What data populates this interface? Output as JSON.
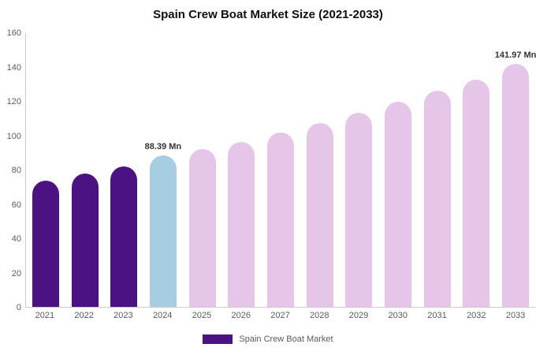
{
  "chart_data": {
    "type": "bar",
    "title": "Spain Crew Boat Market Size (2021-2033)",
    "xlabel": "",
    "ylabel": "",
    "ylim": [
      0,
      160
    ],
    "yticks": [
      0,
      20,
      40,
      60,
      80,
      100,
      120,
      140,
      160
    ],
    "grid": false,
    "legend_position": "bottom-center",
    "legend_label": "Spain Crew Boat Market",
    "colors": {
      "historical": "#4b1284",
      "highlight": "#a7cde2",
      "forecast": "#e6c6e8"
    },
    "categories": [
      "2021",
      "2022",
      "2023",
      "2024",
      "2025",
      "2026",
      "2027",
      "2028",
      "2029",
      "2030",
      "2031",
      "2032",
      "2033"
    ],
    "points": [
      {
        "year": "2021",
        "value": 74,
        "segment": "historical",
        "label": ""
      },
      {
        "year": "2022",
        "value": 78,
        "segment": "historical",
        "label": ""
      },
      {
        "year": "2023",
        "value": 82,
        "segment": "historical",
        "label": ""
      },
      {
        "year": "2024",
        "value": 88.39,
        "segment": "highlight",
        "label": "88.39 Mn"
      },
      {
        "year": "2025",
        "value": 92,
        "segment": "forecast",
        "label": ""
      },
      {
        "year": "2026",
        "value": 96.5,
        "segment": "forecast",
        "label": ""
      },
      {
        "year": "2027",
        "value": 102,
        "segment": "forecast",
        "label": ""
      },
      {
        "year": "2028",
        "value": 107.5,
        "segment": "forecast",
        "label": ""
      },
      {
        "year": "2029",
        "value": 113.5,
        "segment": "forecast",
        "label": ""
      },
      {
        "year": "2030",
        "value": 120,
        "segment": "forecast",
        "label": ""
      },
      {
        "year": "2031",
        "value": 126.5,
        "segment": "forecast",
        "label": ""
      },
      {
        "year": "2032",
        "value": 133,
        "segment": "forecast",
        "label": ""
      },
      {
        "year": "2033",
        "value": 141.97,
        "segment": "forecast",
        "label": "141.97 Mn"
      }
    ]
  }
}
